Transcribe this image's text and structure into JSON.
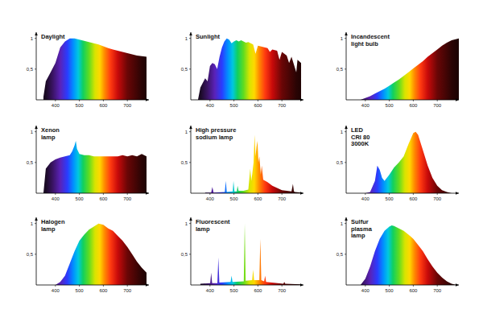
{
  "chart_data": [
    {
      "type": "area",
      "title": "Daylight",
      "xlim": [
        320,
        790
      ],
      "ylim": [
        0,
        1.1
      ],
      "xticks": [
        400,
        500,
        600,
        700
      ],
      "yticks": [
        {
          "value": 0.5,
          "label": "0,5"
        },
        1
      ],
      "grid": false,
      "x": [
        350,
        360,
        380,
        400,
        420,
        440,
        460,
        480,
        500,
        520,
        540,
        560,
        580,
        600,
        620,
        640,
        660,
        680,
        700,
        720,
        740,
        760,
        780
      ],
      "values": [
        0.05,
        0.3,
        0.45,
        0.6,
        0.85,
        0.95,
        1.0,
        1.0,
        0.98,
        0.96,
        0.94,
        0.92,
        0.9,
        0.87,
        0.84,
        0.82,
        0.8,
        0.78,
        0.76,
        0.74,
        0.72,
        0.71,
        0.7
      ]
    },
    {
      "type": "area",
      "title": "Sunlight",
      "xlim": [
        320,
        790
      ],
      "ylim": [
        0,
        1.1
      ],
      "xticks": [
        400,
        500,
        600,
        700
      ],
      "yticks": [
        {
          "value": 0.5,
          "label": "0,5"
        },
        1
      ],
      "grid": false,
      "x": [
        350,
        360,
        380,
        390,
        400,
        410,
        420,
        430,
        440,
        450,
        460,
        470,
        480,
        490,
        500,
        510,
        520,
        530,
        540,
        550,
        560,
        570,
        580,
        590,
        600,
        620,
        640,
        650,
        660,
        680,
        690,
        700,
        720,
        730,
        740,
        760,
        765,
        780
      ],
      "values": [
        0.0,
        0.2,
        0.35,
        0.3,
        0.55,
        0.6,
        0.58,
        0.5,
        0.7,
        0.85,
        0.95,
        1.0,
        0.98,
        0.92,
        0.95,
        0.97,
        0.95,
        0.97,
        0.95,
        0.93,
        0.94,
        0.92,
        0.9,
        0.75,
        0.88,
        0.86,
        0.84,
        0.78,
        0.82,
        0.8,
        0.65,
        0.78,
        0.72,
        0.6,
        0.7,
        0.45,
        0.65,
        0.6
      ]
    },
    {
      "type": "area",
      "title": "Incandescent\nlight bulb",
      "xlim": [
        320,
        790
      ],
      "ylim": [
        0,
        1.1
      ],
      "xticks": [
        400,
        500,
        600,
        700
      ],
      "yticks": [
        {
          "value": 0.5,
          "label": "0,5"
        },
        1
      ],
      "grid": false,
      "x": [
        380,
        400,
        420,
        440,
        460,
        480,
        500,
        520,
        540,
        560,
        580,
        600,
        620,
        640,
        660,
        680,
        700,
        720,
        740,
        760,
        790
      ],
      "values": [
        0.0,
        0.03,
        0.06,
        0.1,
        0.14,
        0.18,
        0.23,
        0.28,
        0.33,
        0.39,
        0.45,
        0.51,
        0.57,
        0.63,
        0.7,
        0.76,
        0.82,
        0.88,
        0.93,
        0.97,
        1.0
      ]
    },
    {
      "type": "area",
      "title": "Xenon\nlamp",
      "xlim": [
        320,
        790
      ],
      "ylim": [
        0,
        1.1
      ],
      "xticks": [
        400,
        500,
        600,
        700
      ],
      "yticks": [
        {
          "value": 0.5,
          "label": "0,5"
        },
        1
      ],
      "grid": false,
      "x": [
        350,
        360,
        380,
        400,
        420,
        440,
        460,
        470,
        480,
        485,
        490,
        500,
        520,
        540,
        560,
        580,
        600,
        620,
        640,
        660,
        680,
        700,
        720,
        740,
        760,
        780
      ],
      "values": [
        0.0,
        0.4,
        0.5,
        0.55,
        0.58,
        0.6,
        0.62,
        0.68,
        0.78,
        0.85,
        0.72,
        0.64,
        0.62,
        0.62,
        0.6,
        0.6,
        0.6,
        0.6,
        0.6,
        0.6,
        0.62,
        0.6,
        0.62,
        0.6,
        0.64,
        0.6
      ]
    },
    {
      "type": "area",
      "title": "High pressure\nsodium lamp",
      "xlim": [
        320,
        790
      ],
      "ylim": [
        0,
        1.1
      ],
      "xticks": [
        400,
        500,
        600,
        700
      ],
      "yticks": [
        {
          "value": 0.5,
          "label": "0,5"
        },
        1
      ],
      "grid": false,
      "x": [
        380,
        405,
        410,
        415,
        462,
        466,
        470,
        495,
        498,
        502,
        512,
        515,
        519,
        540,
        560,
        568,
        572,
        576,
        582,
        586,
        590,
        594,
        598,
        602,
        606,
        612,
        616,
        622,
        640,
        660,
        700,
        740,
        746,
        750,
        754,
        780
      ],
      "values": [
        0.01,
        0.01,
        0.1,
        0.01,
        0.02,
        0.2,
        0.02,
        0.03,
        0.2,
        0.03,
        0.03,
        0.12,
        0.04,
        0.04,
        0.06,
        0.4,
        0.2,
        0.3,
        0.5,
        0.95,
        0.6,
        0.75,
        0.85,
        0.5,
        0.6,
        0.3,
        0.45,
        0.22,
        0.18,
        0.12,
        0.05,
        0.03,
        0.15,
        0.03,
        0.02,
        0.01
      ]
    },
    {
      "type": "area",
      "title": "LED\nCRI 80\n3000K",
      "xlim": [
        320,
        790
      ],
      "ylim": [
        0,
        1.1
      ],
      "xticks": [
        400,
        500,
        600,
        700
      ],
      "yticks": [
        {
          "value": 0.5,
          "label": "0,5"
        },
        1
      ],
      "grid": false,
      "x": [
        400,
        420,
        440,
        450,
        460,
        470,
        480,
        500,
        520,
        540,
        560,
        580,
        600,
        610,
        620,
        640,
        660,
        680,
        700,
        720,
        740,
        760
      ],
      "values": [
        0.0,
        0.02,
        0.2,
        0.45,
        0.38,
        0.25,
        0.2,
        0.3,
        0.42,
        0.5,
        0.6,
        0.8,
        0.98,
        1.0,
        0.95,
        0.7,
        0.45,
        0.25,
        0.12,
        0.05,
        0.02,
        0.0
      ]
    },
    {
      "type": "area",
      "title": "Halogen\nlamp",
      "xlim": [
        320,
        790
      ],
      "ylim": [
        0,
        1.1
      ],
      "xticks": [
        400,
        500,
        600,
        700
      ],
      "yticks": [
        {
          "value": 0.5,
          "label": "0,5"
        },
        1
      ],
      "grid": false,
      "x": [
        400,
        420,
        440,
        460,
        480,
        500,
        520,
        540,
        560,
        580,
        600,
        620,
        640,
        660,
        680,
        700,
        720,
        740,
        760,
        780
      ],
      "values": [
        0.0,
        0.05,
        0.15,
        0.35,
        0.55,
        0.72,
        0.82,
        0.9,
        0.95,
        1.0,
        0.98,
        0.92,
        0.88,
        0.8,
        0.72,
        0.62,
        0.5,
        0.38,
        0.28,
        0.2
      ]
    },
    {
      "type": "area",
      "title": "Fluorescent\nlamp",
      "xlim": [
        320,
        790
      ],
      "ylim": [
        0,
        1.1
      ],
      "xticks": [
        400,
        500,
        600,
        700
      ],
      "yticks": [
        {
          "value": 0.5,
          "label": "0,5"
        },
        1
      ],
      "grid": false,
      "x": [
        360,
        401,
        405,
        409,
        431,
        435,
        439,
        486,
        490,
        494,
        541,
        545,
        549,
        576,
        580,
        584,
        606,
        610,
        614,
        626,
        630,
        634,
        706,
        710,
        714,
        780
      ],
      "values": [
        0.02,
        0.03,
        0.2,
        0.03,
        0.03,
        0.45,
        0.04,
        0.05,
        0.15,
        0.05,
        0.06,
        1.0,
        0.07,
        0.08,
        0.25,
        0.08,
        0.08,
        0.75,
        0.08,
        0.06,
        0.15,
        0.05,
        0.02,
        0.05,
        0.02,
        0.01
      ]
    },
    {
      "type": "area",
      "title": "Sulfur\nplasma\nlamp",
      "xlim": [
        320,
        790
      ],
      "ylim": [
        0,
        1.1
      ],
      "xticks": [
        400,
        500,
        600,
        700
      ],
      "yticks": [
        {
          "value": 0.5,
          "label": "0,5"
        },
        1
      ],
      "grid": false,
      "x": [
        380,
        400,
        420,
        440,
        460,
        480,
        500,
        510,
        520,
        540,
        560,
        580,
        600,
        620,
        640,
        660,
        680,
        700,
        720,
        740,
        760,
        780
      ],
      "values": [
        0.0,
        0.1,
        0.3,
        0.55,
        0.75,
        0.88,
        0.95,
        0.97,
        0.96,
        0.92,
        0.88,
        0.82,
        0.75,
        0.65,
        0.55,
        0.42,
        0.3,
        0.2,
        0.12,
        0.06,
        0.02,
        0.0
      ]
    }
  ]
}
